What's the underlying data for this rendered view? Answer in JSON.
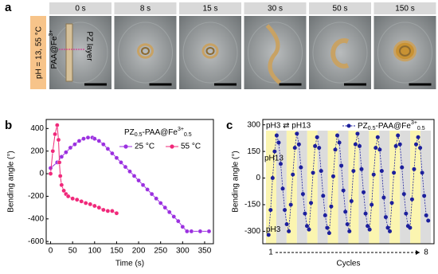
{
  "panel_a": {
    "label": "a",
    "condition": "pH = 13, 55 °C",
    "times": [
      "0 s",
      "8 s",
      "15 s",
      "30 s",
      "50 s",
      "150 s"
    ],
    "annotation_left": [
      "PAA@Fe",
      "3+"
    ],
    "annotation_right": "PZ layer"
  },
  "chart_data": [
    {
      "type": "line",
      "panel_label": "b",
      "x_label": "Time (s)",
      "y_label": "Bending angle (°)",
      "legend_title": [
        "PZ",
        "0.5",
        "-PAA@Fe",
        "3+",
        "0.5"
      ],
      "xlim": [
        -10,
        370
      ],
      "xticks": [
        0,
        50,
        100,
        150,
        200,
        250,
        300,
        350
      ],
      "ylim": [
        -620,
        480
      ],
      "yticks": [
        -600,
        -400,
        -200,
        0,
        200,
        400
      ],
      "series": [
        {
          "name": "25 °C",
          "color": "#9b30e0",
          "x": [
            0,
            15,
            25,
            35,
            45,
            55,
            65,
            75,
            85,
            95,
            100,
            110,
            120,
            130,
            140,
            150,
            160,
            170,
            180,
            190,
            200,
            210,
            220,
            230,
            240,
            250,
            260,
            270,
            280,
            290,
            300,
            310,
            320,
            340,
            360
          ],
          "values": [
            50,
            100,
            150,
            190,
            230,
            260,
            290,
            310,
            320,
            320,
            310,
            290,
            260,
            220,
            180,
            140,
            100,
            60,
            20,
            -20,
            -60,
            -100,
            -140,
            -180,
            -220,
            -260,
            -300,
            -340,
            -380,
            -420,
            -470,
            -510,
            -510,
            -510,
            -510
          ]
        },
        {
          "name": "55 °C",
          "color": "#f0287a",
          "x": [
            0,
            5,
            10,
            15,
            18,
            20,
            22,
            25,
            30,
            35,
            40,
            50,
            60,
            70,
            80,
            90,
            100,
            110,
            120,
            130,
            140,
            150
          ],
          "values": [
            0,
            200,
            350,
            430,
            300,
            100,
            -20,
            -100,
            -150,
            -180,
            -200,
            -220,
            -230,
            -245,
            -260,
            -270,
            -285,
            -300,
            -320,
            -330,
            -330,
            -350
          ]
        }
      ]
    },
    {
      "type": "cycles",
      "panel_label": "c",
      "x_label": "Cycles",
      "y_label": "Bending angle (°)",
      "switch_label": "pH3 ⇄ pH13",
      "high_label": "pH13",
      "low_label": "pH3",
      "cycle_range": [
        1,
        8
      ],
      "band_colors": [
        "#fbf5b0",
        "#dcdcdc"
      ],
      "ylim": [
        -370,
        330
      ],
      "yticks": [
        -300,
        -150,
        0,
        150,
        300
      ],
      "series": [
        {
          "name": [
            "PZ",
            "0.5",
            "-PAA@Fe",
            "3+",
            "0.5"
          ],
          "color": "#1c1f9c",
          "values": [
            -320,
            -180,
            0,
            150,
            240,
            200,
            80,
            -60,
            -180,
            -260,
            -300,
            -150,
            20,
            170,
            250,
            190,
            60,
            -90,
            -200,
            -270,
            -290,
            -140,
            30,
            180,
            230,
            170,
            40,
            -100,
            -210,
            -280,
            -310,
            -160,
            10,
            160,
            240,
            200,
            70,
            -70,
            -190,
            -260,
            -300,
            -130,
            40,
            190,
            250,
            180,
            50,
            -80,
            -200,
            -270,
            -290,
            -150,
            20,
            170,
            230,
            160,
            40,
            -110,
            -220,
            -280,
            -300,
            -140,
            30,
            180,
            240,
            190,
            60,
            -90,
            -200,
            -270,
            -280,
            -120,
            50,
            190,
            230,
            170,
            30,
            -100,
            -210,
            -240
          ]
        }
      ]
    }
  ]
}
